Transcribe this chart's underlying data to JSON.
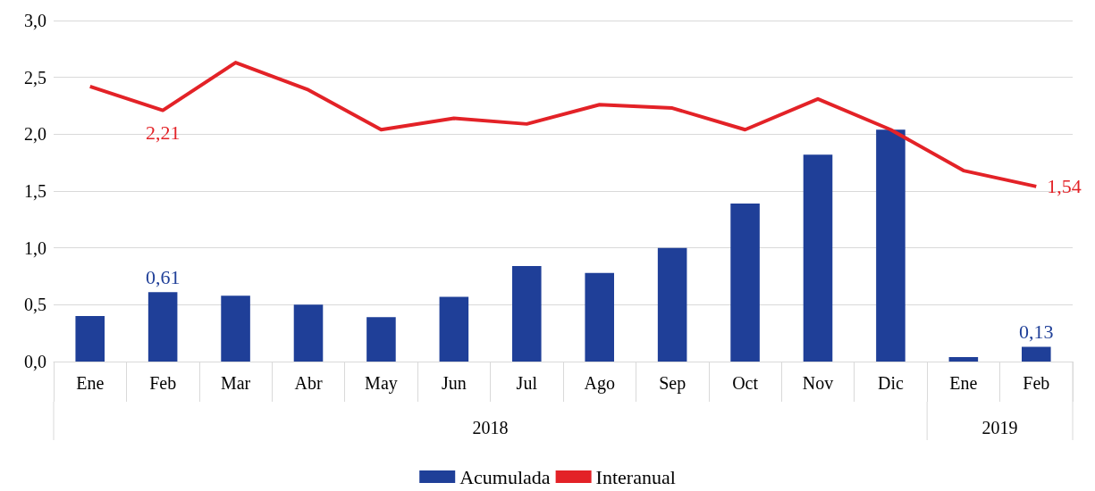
{
  "chart_data": {
    "type": "bar",
    "categories": [
      "Ene",
      "Feb",
      "Mar",
      "Abr",
      "May",
      "Jun",
      "Jul",
      "Ago",
      "Sep",
      "Oct",
      "Nov",
      "Dic",
      "Ene",
      "Feb"
    ],
    "series": [
      {
        "name": "Acumulada",
        "color": "#1f3f98",
        "values": [
          0.4,
          0.61,
          0.58,
          0.5,
          0.39,
          0.57,
          0.84,
          0.78,
          1.0,
          1.39,
          1.82,
          2.04,
          0.04,
          0.13
        ],
        "value_labels": [
          null,
          "0,61",
          null,
          null,
          null,
          null,
          null,
          null,
          null,
          null,
          null,
          null,
          null,
          "0,13"
        ]
      },
      {
        "name": "Interanual",
        "type": "line",
        "color": "#e32227",
        "values": [
          2.42,
          2.21,
          2.63,
          2.39,
          2.04,
          2.14,
          2.09,
          2.26,
          2.23,
          2.04,
          2.31,
          2.04,
          1.68,
          1.54
        ],
        "value_labels": [
          null,
          "2,21",
          null,
          null,
          null,
          null,
          null,
          null,
          null,
          null,
          null,
          null,
          null,
          "1,54"
        ]
      }
    ],
    "annotations": [
      "2018",
      "2019"
    ],
    "ylim": [
      0,
      3
    ],
    "yticks": [
      {
        "value": 0,
        "label": "0,0"
      },
      {
        "value": 0.5,
        "label": "0,5"
      },
      {
        "value": 1,
        "label": "1,0"
      },
      {
        "value": 1.5,
        "label": "1,5"
      },
      {
        "value": 2,
        "label": "2,0"
      },
      {
        "value": 2.5,
        "label": "2,5"
      },
      {
        "value": 3,
        "label": "3,0"
      }
    ],
    "grid": "y",
    "legend": "bottom",
    "marker": "none",
    "line_style": "solid"
  }
}
